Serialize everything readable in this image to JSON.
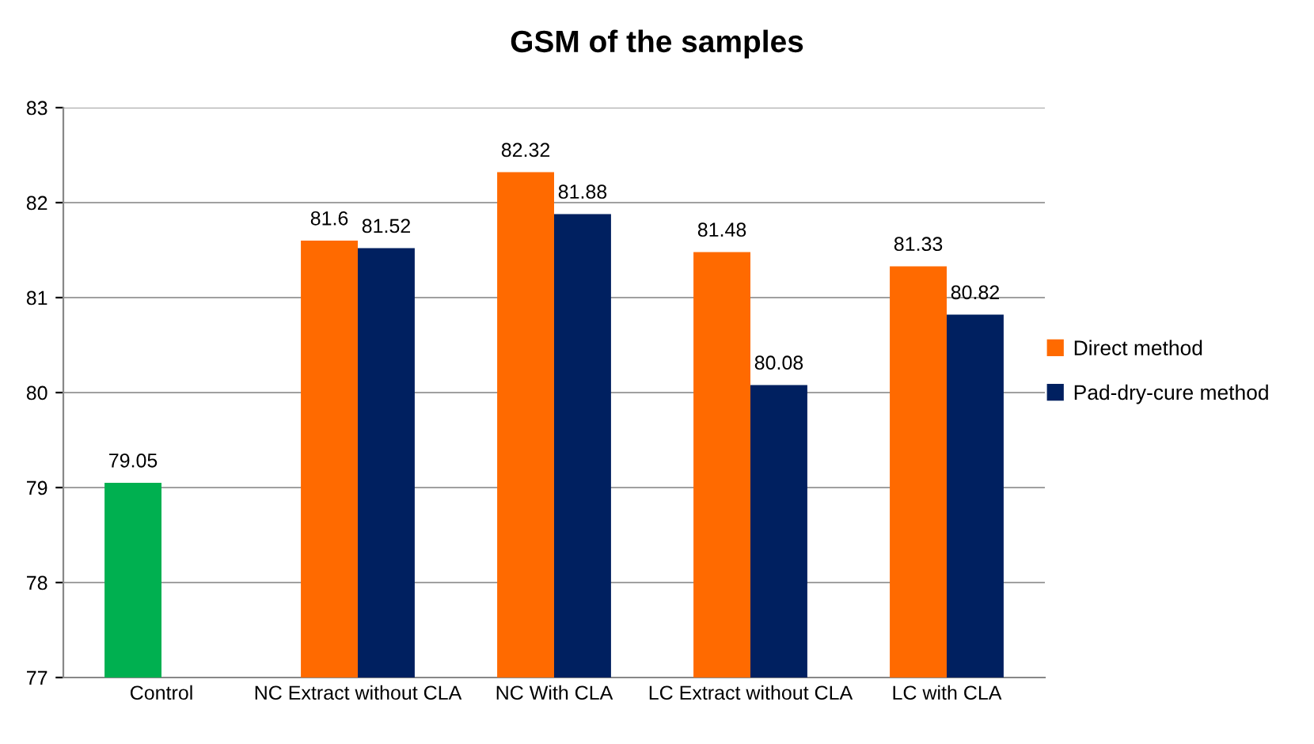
{
  "chart_data": {
    "type": "bar",
    "title": "GSM of the samples",
    "categories": [
      "Control",
      "NC Extract without CLA",
      "NC With CLA",
      "LC Extract without CLA",
      "LC with CLA"
    ],
    "series": [
      {
        "name": "Direct method",
        "color": "#ff6a00",
        "colors": [
          "#00b050",
          "#ff6a00",
          "#ff6a00",
          "#ff6a00",
          "#ff6a00"
        ],
        "values": [
          79.05,
          81.6,
          82.32,
          81.48,
          81.33
        ]
      },
      {
        "name": "Pad-dry-cure method",
        "color": "#002060",
        "values": [
          null,
          81.52,
          81.88,
          80.08,
          80.82
        ]
      }
    ],
    "ylim": [
      77,
      83
    ],
    "yticks": [
      77,
      78,
      79,
      80,
      81,
      82,
      83
    ],
    "grid": "y",
    "legend": "right",
    "data_labels": true
  }
}
